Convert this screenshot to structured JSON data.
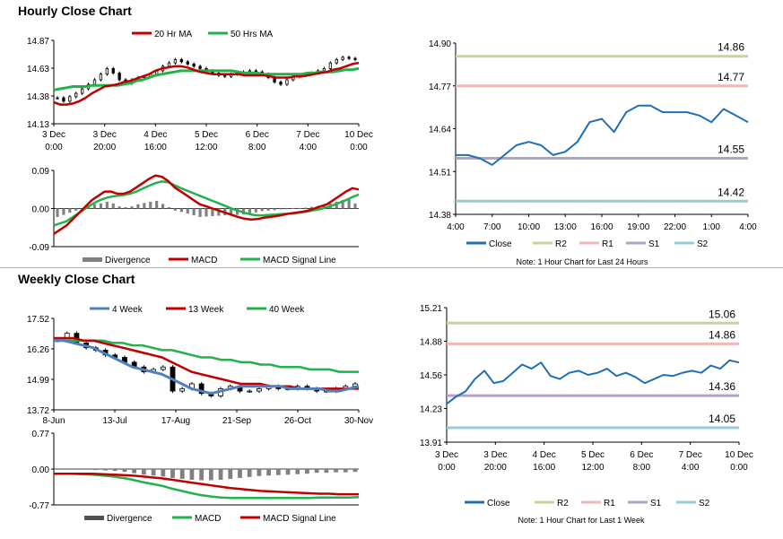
{
  "sections": {
    "hourly_title": "Hourly Close Chart",
    "weekly_title": "Weekly Close Chart"
  },
  "colors": {
    "ma20": "#c00000",
    "ma50": "#22b14c",
    "close": "#1f6fb5",
    "r2": "#c3d69b",
    "r1": "#f2b8b8",
    "s1": "#b3a2c7",
    "s2": "#93cddd",
    "divergence": "#808080",
    "wk4": "#4f81bd",
    "wk13": "#c00000",
    "wk40": "#22b14c"
  },
  "chart_data": [
    {
      "id": "hourly_price",
      "type": "candlestick",
      "legend": [
        "20 Hr MA",
        "50 Hrs MA"
      ],
      "ylim": [
        14.13,
        14.87
      ],
      "yticks": [
        "14.87",
        "14.63",
        "14.38",
        "14.13"
      ],
      "xticks": [
        [
          "3 Dec",
          "0:00"
        ],
        [
          "3 Dec",
          "20:00"
        ],
        [
          "4 Dec",
          "16:00"
        ],
        [
          "5 Dec",
          "12:00"
        ],
        [
          "6 Dec",
          "8:00"
        ],
        [
          "7 Dec",
          "4:00"
        ],
        [
          "10 Dec",
          "0:00"
        ]
      ],
      "close": [
        14.36,
        14.33,
        14.37,
        14.4,
        14.44,
        14.48,
        14.52,
        14.57,
        14.62,
        14.58,
        14.52,
        14.49,
        14.52,
        14.54,
        14.55,
        14.57,
        14.6,
        14.64,
        14.67,
        14.7,
        14.68,
        14.66,
        14.64,
        14.62,
        14.6,
        14.58,
        14.56,
        14.55,
        14.57,
        14.58,
        14.59,
        14.6,
        14.59,
        14.57,
        14.54,
        14.5,
        14.48,
        14.52,
        14.55,
        14.56,
        14.57,
        14.58,
        14.6,
        14.62,
        14.67,
        14.7,
        14.72,
        14.71,
        14.7
      ],
      "ma20": [
        14.32,
        14.3,
        14.3,
        14.31,
        14.33,
        14.36,
        14.4,
        14.43,
        14.46,
        14.47,
        14.48,
        14.5,
        14.51,
        14.53,
        14.55,
        14.57,
        14.6,
        14.62,
        14.63,
        14.64,
        14.64,
        14.63,
        14.61,
        14.59,
        14.58,
        14.57,
        14.57,
        14.57,
        14.57,
        14.57,
        14.56,
        14.56,
        14.56,
        14.56,
        14.55,
        14.54,
        14.54,
        14.54,
        14.55,
        14.55,
        14.56,
        14.57,
        14.58,
        14.59,
        14.61,
        14.62,
        14.64,
        14.66,
        14.67
      ],
      "ma50": [
        14.43,
        14.44,
        14.45,
        14.46,
        14.46,
        14.46,
        14.47,
        14.47,
        14.47,
        14.47,
        14.47,
        14.48,
        14.49,
        14.51,
        14.52,
        14.54,
        14.56,
        14.57,
        14.58,
        14.59,
        14.6,
        14.6,
        14.6,
        14.6,
        14.6,
        14.6,
        14.6,
        14.6,
        14.6,
        14.59,
        14.58,
        14.58,
        14.58,
        14.57,
        14.57,
        14.57,
        14.57,
        14.57,
        14.57,
        14.57,
        14.58,
        14.58,
        14.59,
        14.59,
        14.59,
        14.6,
        14.61,
        14.61,
        14.62
      ]
    },
    {
      "id": "hourly_macd",
      "type": "macd",
      "legend": [
        "Divergence",
        "MACD",
        "MACD Signal Line"
      ],
      "ylim": [
        -0.09,
        0.09
      ],
      "yticks": [
        "0.09",
        "0.00",
        "-0.09"
      ],
      "macd": [
        -0.06,
        -0.05,
        -0.04,
        -0.025,
        -0.01,
        0.005,
        0.02,
        0.03,
        0.04,
        0.04,
        0.035,
        0.035,
        0.04,
        0.05,
        0.06,
        0.07,
        0.078,
        0.075,
        0.065,
        0.05,
        0.04,
        0.03,
        0.02,
        0.01,
        0.005,
        0.0,
        -0.005,
        -0.01,
        -0.015,
        -0.02,
        -0.024,
        -0.026,
        -0.025,
        -0.022,
        -0.02,
        -0.018,
        -0.015,
        -0.012,
        -0.01,
        -0.008,
        -0.005,
        0.0,
        0.005,
        0.01,
        0.02,
        0.03,
        0.04,
        0.048,
        0.045
      ],
      "signal": [
        -0.04,
        -0.035,
        -0.03,
        -0.02,
        -0.01,
        0.0,
        0.01,
        0.018,
        0.024,
        0.028,
        0.03,
        0.032,
        0.035,
        0.04,
        0.047,
        0.054,
        0.06,
        0.064,
        0.062,
        0.055,
        0.048,
        0.042,
        0.036,
        0.03,
        0.024,
        0.018,
        0.012,
        0.006,
        0.0,
        -0.005,
        -0.01,
        -0.014,
        -0.016,
        -0.016,
        -0.015,
        -0.014,
        -0.013,
        -0.012,
        -0.011,
        -0.009,
        -0.007,
        -0.004,
        -0.001,
        0.003,
        0.008,
        0.014,
        0.02,
        0.027,
        0.033
      ]
    },
    {
      "id": "hourly_24h",
      "type": "line",
      "ylim": [
        14.38,
        14.9
      ],
      "yticks": [
        "14.90",
        "14.77",
        "14.64",
        "14.51",
        "14.38"
      ],
      "xticks": [
        "4:00",
        "7:00",
        "10:00",
        "13:00",
        "16:00",
        "19:00",
        "22:00",
        "1:00",
        "4:00"
      ],
      "close": [
        14.56,
        14.56,
        14.55,
        14.53,
        14.56,
        14.59,
        14.6,
        14.59,
        14.56,
        14.57,
        14.6,
        14.66,
        14.67,
        14.63,
        14.69,
        14.71,
        14.71,
        14.69,
        14.69,
        14.69,
        14.68,
        14.66,
        14.7,
        14.68,
        14.66
      ],
      "levels": [
        {
          "name": "R2",
          "value": 14.86,
          "label": "14.86"
        },
        {
          "name": "R1",
          "value": 14.77,
          "label": "14.77"
        },
        {
          "name": "S1",
          "value": 14.55,
          "label": "14.55"
        },
        {
          "name": "S2",
          "value": 14.42,
          "label": "14.42"
        }
      ],
      "legend": [
        "Close",
        "R2",
        "R1",
        "S1",
        "S2"
      ],
      "note": "Note: 1 Hour Chart for Last 24 Hours"
    },
    {
      "id": "weekly_price",
      "type": "candlestick",
      "legend": [
        "4 Week",
        "13 Week",
        "40 Week"
      ],
      "ylim": [
        13.72,
        17.52
      ],
      "yticks": [
        "17.52",
        "16.26",
        "14.99",
        "13.72"
      ],
      "xticks": [
        "8-Jun",
        "13-Jul",
        "17-Aug",
        "21-Sep",
        "26-Oct",
        "30-Nov"
      ],
      "close": [
        16.6,
        16.9,
        16.5,
        16.3,
        16.2,
        16.0,
        15.9,
        15.7,
        15.5,
        15.3,
        15.4,
        15.5,
        14.5,
        14.6,
        14.8,
        14.4,
        14.3,
        14.6,
        14.7,
        14.5,
        14.5,
        14.6,
        14.7,
        14.6,
        14.6,
        14.7,
        14.6,
        14.5,
        14.5,
        14.6,
        14.7,
        14.8
      ],
      "wk4": [
        16.6,
        16.6,
        16.5,
        16.4,
        16.3,
        16.1,
        15.9,
        15.7,
        15.5,
        15.4,
        15.3,
        15.2,
        15.0,
        14.8,
        14.6,
        14.5,
        14.4,
        14.5,
        14.6,
        14.7,
        14.7,
        14.7,
        14.7,
        14.7,
        14.6,
        14.6,
        14.6,
        14.6,
        14.5,
        14.5,
        14.6,
        14.7
      ],
      "wk13": [
        16.7,
        16.7,
        16.7,
        16.6,
        16.6,
        16.5,
        16.4,
        16.3,
        16.2,
        16.1,
        16.0,
        15.9,
        15.7,
        15.5,
        15.3,
        15.2,
        15.1,
        15.0,
        14.9,
        14.8,
        14.8,
        14.8,
        14.7,
        14.7,
        14.7,
        14.6,
        14.6,
        14.6,
        14.6,
        14.6,
        14.6,
        14.6
      ],
      "wk40": [
        16.6,
        16.6,
        16.6,
        16.6,
        16.6,
        16.6,
        16.5,
        16.5,
        16.4,
        16.4,
        16.3,
        16.2,
        16.2,
        16.1,
        16.0,
        15.9,
        15.9,
        15.8,
        15.8,
        15.7,
        15.7,
        15.6,
        15.6,
        15.5,
        15.5,
        15.5,
        15.4,
        15.4,
        15.4,
        15.3,
        15.3,
        15.3
      ]
    },
    {
      "id": "weekly_macd",
      "type": "macd",
      "legend": [
        "Divergence",
        "MACD",
        "MACD Signal Line"
      ],
      "ylim": [
        -0.77,
        0.77
      ],
      "yticks": [
        "0.77",
        "0.00",
        "-0.77"
      ],
      "macd": [
        -0.1,
        -0.1,
        -0.1,
        -0.11,
        -0.12,
        -0.14,
        -0.16,
        -0.19,
        -0.23,
        -0.28,
        -0.32,
        -0.36,
        -0.42,
        -0.47,
        -0.52,
        -0.56,
        -0.59,
        -0.61,
        -0.62,
        -0.62,
        -0.62,
        -0.62,
        -0.62,
        -0.62,
        -0.62,
        -0.62,
        -0.62,
        -0.61,
        -0.61,
        -0.61,
        -0.61,
        -0.6
      ],
      "signal": [
        -0.1,
        -0.1,
        -0.1,
        -0.1,
        -0.1,
        -0.11,
        -0.12,
        -0.13,
        -0.14,
        -0.16,
        -0.18,
        -0.2,
        -0.23,
        -0.26,
        -0.29,
        -0.32,
        -0.35,
        -0.38,
        -0.41,
        -0.43,
        -0.45,
        -0.47,
        -0.48,
        -0.49,
        -0.5,
        -0.51,
        -0.52,
        -0.53,
        -0.53,
        -0.54,
        -0.54,
        -0.54
      ]
    },
    {
      "id": "weekly_1w",
      "type": "line",
      "ylim": [
        13.91,
        15.21
      ],
      "yticks": [
        "15.21",
        "14.88",
        "14.56",
        "14.23",
        "13.91"
      ],
      "xticks": [
        [
          "3 Dec",
          "0:00"
        ],
        [
          "3 Dec",
          "20:00"
        ],
        [
          "4 Dec",
          "16:00"
        ],
        [
          "5 Dec",
          "12:00"
        ],
        [
          "6 Dec",
          "8:00"
        ],
        [
          "7 Dec",
          "4:00"
        ],
        [
          "10 Dec",
          "0:00"
        ]
      ],
      "close": [
        14.28,
        14.35,
        14.4,
        14.52,
        14.6,
        14.48,
        14.5,
        14.58,
        14.66,
        14.62,
        14.68,
        14.55,
        14.52,
        14.58,
        14.6,
        14.56,
        14.58,
        14.62,
        14.55,
        14.58,
        14.54,
        14.48,
        14.52,
        14.56,
        14.55,
        14.58,
        14.6,
        14.58,
        14.65,
        14.62,
        14.7,
        14.68
      ],
      "levels": [
        {
          "name": "R2",
          "value": 15.06,
          "label": "15.06"
        },
        {
          "name": "R1",
          "value": 14.86,
          "label": "14.86"
        },
        {
          "name": "S1",
          "value": 14.36,
          "label": "14.36"
        },
        {
          "name": "S2",
          "value": 14.05,
          "label": "14.05"
        }
      ],
      "legend": [
        "Close",
        "R2",
        "R1",
        "S1",
        "S2"
      ],
      "note": "Note: 1 Hour Chart for Last 1 Week"
    }
  ]
}
